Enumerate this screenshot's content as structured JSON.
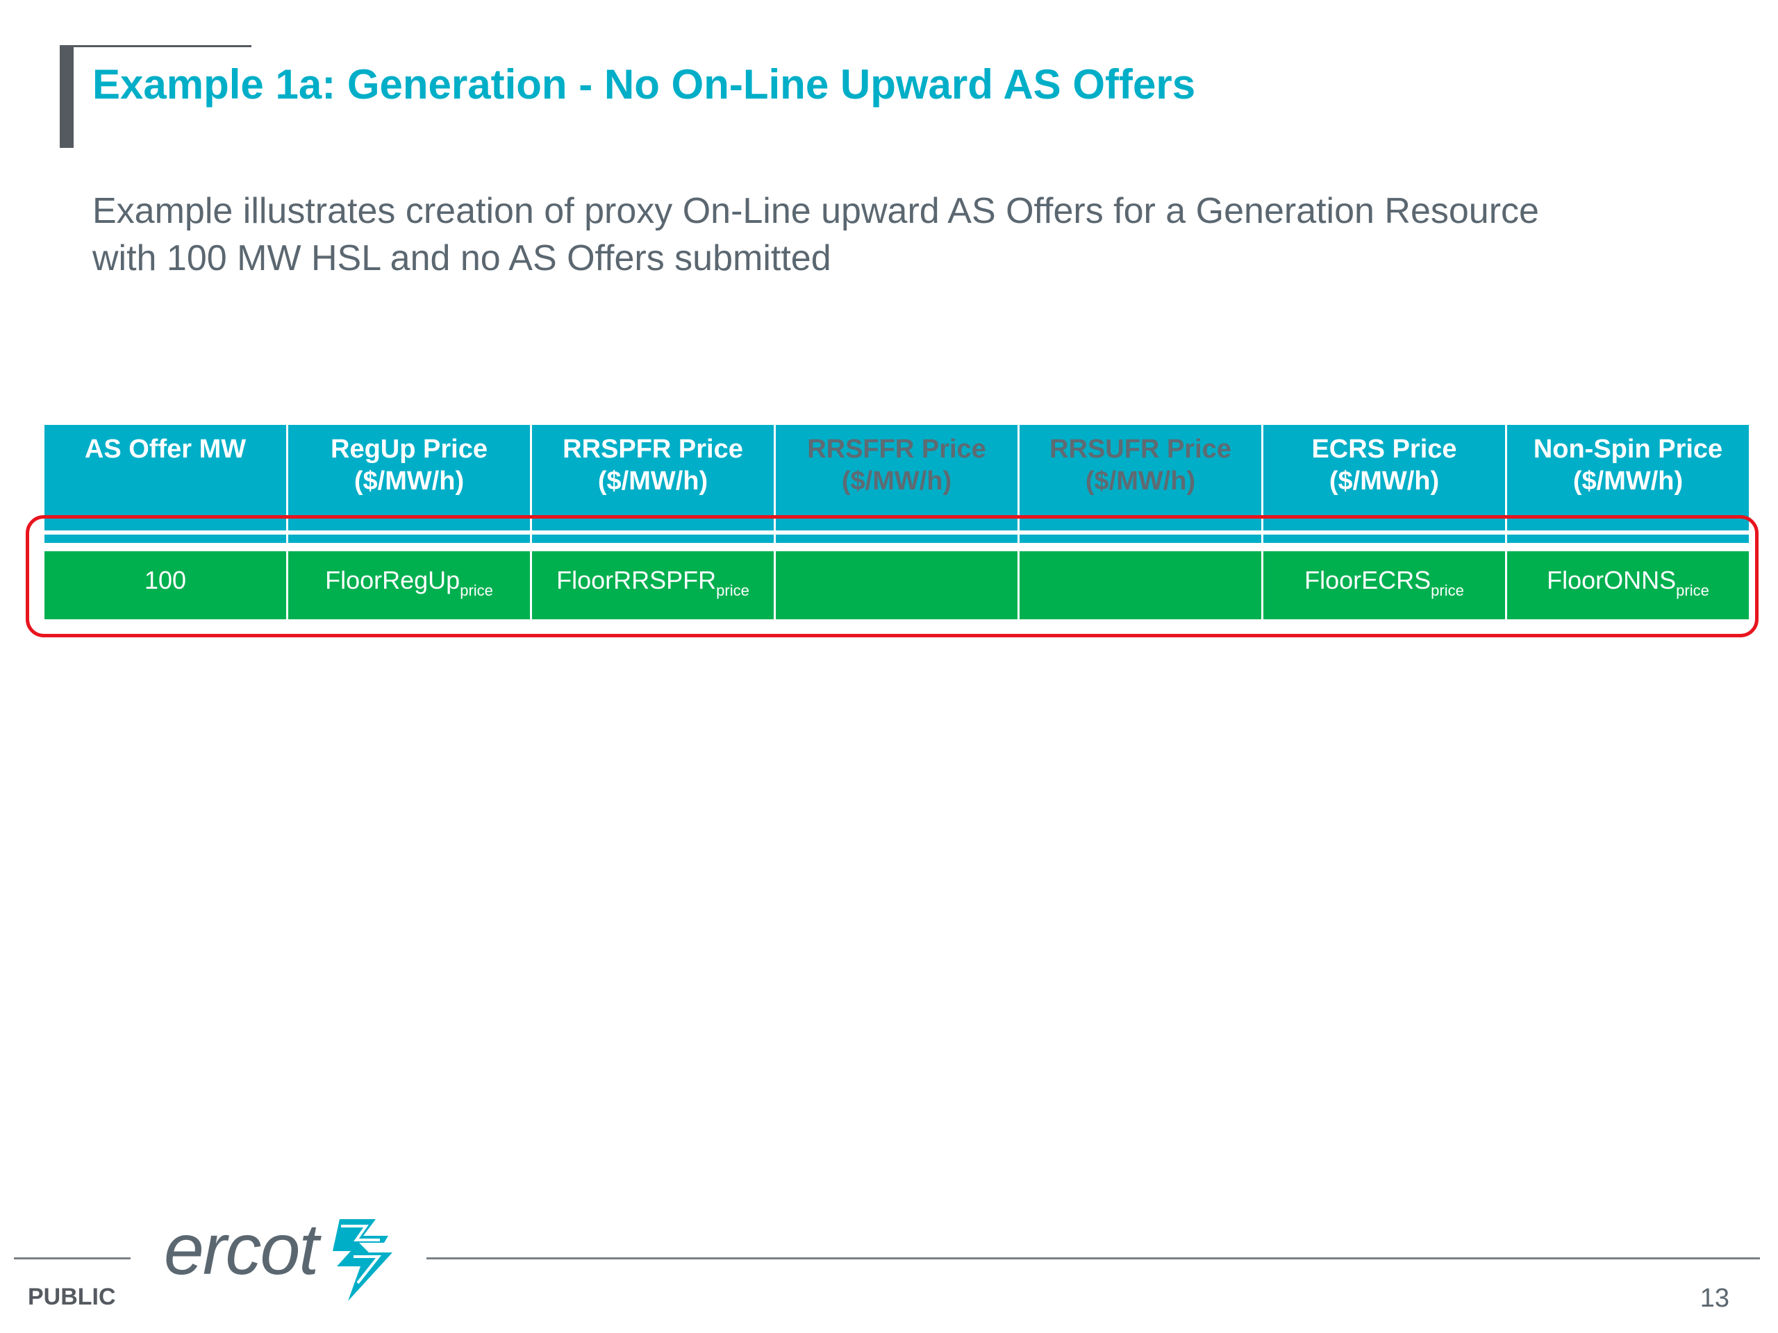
{
  "slide": {
    "title": "Example 1a: Generation - No On-Line Upward AS Offers",
    "subtitle_lines": [
      "Example illustrates creation of proxy On-Line upward AS Offers for a Generation Resource",
      "with 100 MW HSL and no AS Offers submitted"
    ]
  },
  "table": {
    "headers": [
      {
        "line1": "AS Offer MW",
        "line2": ""
      },
      {
        "line1": "RegUp Price",
        "line2": "($/MW/h)"
      },
      {
        "line1": "RRSPFR Price",
        "line2": "($/MW/h)"
      },
      {
        "line1": "RRSFFR Price",
        "line2": "($/MW/h)"
      },
      {
        "line1": "RRSUFR Price",
        "line2": "($/MW/h)"
      },
      {
        "line1": "ECRS Price",
        "line2": "($/MW/h)"
      },
      {
        "line1": "Non-Spin Price",
        "line2": "($/MW/h)"
      }
    ],
    "row": [
      {
        "main": "100",
        "sub": ""
      },
      {
        "main": "FloorRegUp",
        "sub": "price"
      },
      {
        "main": "FloorRRSPFR",
        "sub": "price"
      },
      {
        "main": "",
        "sub": ""
      },
      {
        "main": "",
        "sub": ""
      },
      {
        "main": "FloorECRS",
        "sub": "price"
      },
      {
        "main": "FloorONNS",
        "sub": "price"
      }
    ]
  },
  "footer": {
    "logo_text": "ercot",
    "classification": "PUBLIC",
    "page_number": "13"
  },
  "colors": {
    "title": "#00aec7",
    "header_bg": "#00aec7",
    "row_bg": "#00b04f",
    "highlight": "#e8141e",
    "text_gray": "#5b6770",
    "dim_header_text": "#5f6a72"
  },
  "icons": {
    "logo_mark": "ercot-lightning-bolt-logo"
  }
}
